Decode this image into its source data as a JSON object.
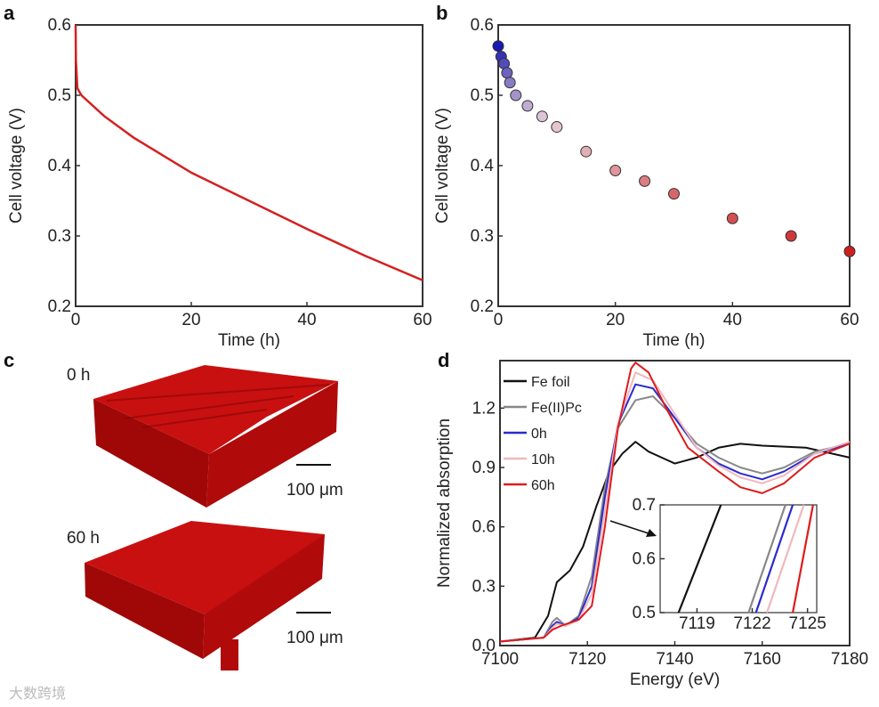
{
  "panel_labels": [
    "a",
    "b",
    "c",
    "d"
  ],
  "panel_c": {
    "label_top": "0 h",
    "label_bottom": "60 h",
    "scale_top": "100 μm",
    "scale_bottom": "100 μm"
  },
  "watermark": "大数跨境",
  "chart_data": [
    {
      "id": "a",
      "type": "line",
      "xlabel": "Time (h)",
      "ylabel": "Cell voltage (V)",
      "xlim": [
        0,
        60
      ],
      "ylim": [
        0.2,
        0.6
      ],
      "xticks": [
        "0",
        "20",
        "40",
        "60"
      ],
      "yticks": [
        "0.2",
        "0.3",
        "0.4",
        "0.5",
        "0.6"
      ],
      "color": "#d42020",
      "x": [
        0,
        0.05,
        0.3,
        1,
        5,
        10,
        20,
        30,
        40,
        50,
        60
      ],
      "y": [
        0.6,
        0.55,
        0.51,
        0.5,
        0.47,
        0.44,
        0.39,
        0.35,
        0.31,
        0.272,
        0.237
      ]
    },
    {
      "id": "b",
      "type": "scatter",
      "xlabel": "Time (h)",
      "ylabel": "Cell voltage (V)",
      "xlim": [
        0,
        60
      ],
      "ylim": [
        0.2,
        0.6
      ],
      "xticks": [
        "0",
        "20",
        "40",
        "60"
      ],
      "yticks": [
        "0.2",
        "0.3",
        "0.4",
        "0.5",
        "0.6"
      ],
      "color_start": "#1a1ab0",
      "color_mid": "#e8d0d8",
      "color_end": "#cc2020",
      "x": [
        0,
        0.5,
        1,
        1.5,
        2,
        3,
        5,
        7.5,
        10,
        15,
        20,
        25,
        30,
        40,
        50,
        60
      ],
      "y": [
        0.57,
        0.555,
        0.545,
        0.532,
        0.518,
        0.5,
        0.485,
        0.47,
        0.455,
        0.42,
        0.393,
        0.378,
        0.36,
        0.325,
        0.3,
        0.278
      ]
    },
    {
      "id": "d",
      "type": "line",
      "xlabel": "Energy (eV)",
      "ylabel": "Normalized absorption",
      "xlim": [
        7100,
        7180
      ],
      "ylim": [
        0,
        1.44
      ],
      "xticks": [
        "7100",
        "7120",
        "7140",
        "7160",
        "7180"
      ],
      "yticks": [
        "0.0",
        "0.3",
        "0.6",
        "0.9",
        "1.2"
      ],
      "series": [
        {
          "name": "Fe foil",
          "color": "#111111",
          "x": [
            7100,
            7108,
            7111,
            7113,
            7116,
            7119,
            7122,
            7125,
            7128,
            7131,
            7134,
            7137,
            7140,
            7145,
            7150,
            7155,
            7160,
            7170,
            7180
          ],
          "y": [
            0.02,
            0.04,
            0.15,
            0.32,
            0.38,
            0.5,
            0.7,
            0.88,
            0.97,
            1.03,
            0.98,
            0.95,
            0.92,
            0.95,
            1.0,
            1.02,
            1.01,
            1.0,
            0.95
          ]
        },
        {
          "name": "Fe(II)Pc",
          "color": "#888888",
          "x": [
            7100,
            7110,
            7112,
            7113,
            7115,
            7118,
            7121,
            7124,
            7127,
            7131,
            7135,
            7140,
            7145,
            7150,
            7155,
            7160,
            7165,
            7172,
            7180
          ],
          "y": [
            0.02,
            0.04,
            0.12,
            0.14,
            0.1,
            0.15,
            0.35,
            0.8,
            1.1,
            1.24,
            1.26,
            1.15,
            1.02,
            0.95,
            0.9,
            0.87,
            0.9,
            0.98,
            1.02
          ]
        },
        {
          "name": "0h",
          "color": "#2a2ad0",
          "x": [
            7100,
            7110,
            7112,
            7113,
            7115,
            7118,
            7121,
            7124,
            7127,
            7131,
            7135,
            7140,
            7145,
            7150,
            7155,
            7160,
            7165,
            7172,
            7180
          ],
          "y": [
            0.02,
            0.04,
            0.1,
            0.12,
            0.1,
            0.14,
            0.3,
            0.75,
            1.12,
            1.32,
            1.3,
            1.15,
            1.0,
            0.92,
            0.87,
            0.84,
            0.88,
            0.97,
            1.02
          ]
        },
        {
          "name": "10h",
          "color": "#f0b8bc",
          "x": [
            7100,
            7110,
            7112,
            7113,
            7115,
            7118,
            7121,
            7124,
            7127,
            7131,
            7135,
            7140,
            7145,
            7150,
            7155,
            7160,
            7165,
            7172,
            7180
          ],
          "y": [
            0.02,
            0.04,
            0.09,
            0.11,
            0.1,
            0.13,
            0.26,
            0.68,
            1.12,
            1.38,
            1.34,
            1.17,
            1.0,
            0.91,
            0.85,
            0.82,
            0.86,
            0.97,
            1.03
          ]
        },
        {
          "name": "60h",
          "color": "#dd1c1c",
          "x": [
            7100,
            7110,
            7112,
            7114,
            7118,
            7121,
            7124,
            7127,
            7130,
            7131,
            7134,
            7138,
            7143,
            7150,
            7155,
            7160,
            7165,
            7172,
            7180
          ],
          "y": [
            0.02,
            0.04,
            0.08,
            0.1,
            0.13,
            0.2,
            0.6,
            1.1,
            1.4,
            1.43,
            1.38,
            1.2,
            1.0,
            0.88,
            0.8,
            0.77,
            0.82,
            0.95,
            1.02
          ]
        }
      ],
      "inset": {
        "xlim": [
          7117,
          7125.5
        ],
        "ylim": [
          0.5,
          0.7
        ],
        "xticks": [
          "7119",
          "7122",
          "7125"
        ],
        "yticks": [
          "0.5",
          "0.6",
          "0.7"
        ],
        "lines": [
          {
            "color": "#111111",
            "x": [
              7118,
              7120.3
            ]
          },
          {
            "color": "#888888",
            "x": [
              7121.8,
              7123.8
            ]
          },
          {
            "color": "#2a2ad0",
            "x": [
              7122.2,
              7124.2
            ]
          },
          {
            "color": "#f0b8bc",
            "x": [
              7122.8,
              7124.8
            ]
          },
          {
            "color": "#dd1c1c",
            "x": [
              7124.2,
              7125.3
            ]
          }
        ]
      }
    }
  ]
}
